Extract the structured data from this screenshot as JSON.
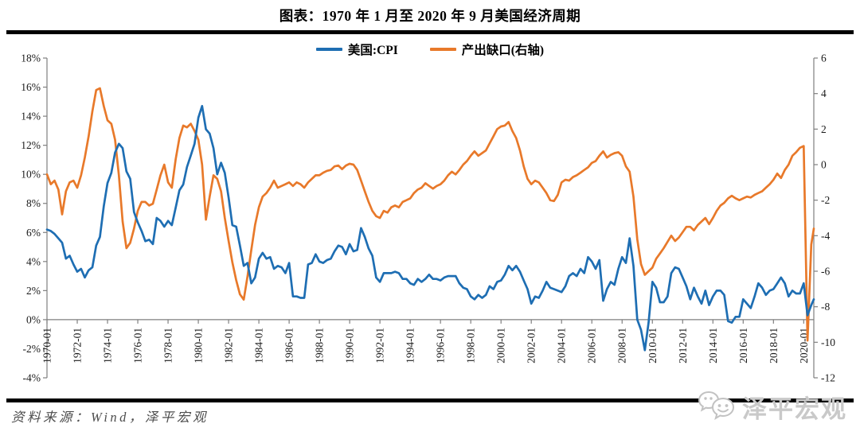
{
  "header": {
    "title": "图表：1970 年 1 月至 2020 年 9 月美国经济周期"
  },
  "legend": {
    "items": [
      {
        "label": "美国:CPI",
        "color": "#1e6eb3"
      },
      {
        "label": "产出缺口(右轴)",
        "color": "#e8792a"
      }
    ]
  },
  "footer": {
    "source_note": "资料来源：Wind，泽平宏观"
  },
  "watermark": {
    "text": "泽平宏观"
  },
  "chart_data": {
    "type": "line",
    "title": "图表：1970 年 1 月至 2020 年 9 月美国经济周期",
    "legend_position": "top",
    "grid": false,
    "x_start": 1970.0,
    "x_step": 0.25,
    "x_end": 2020.667,
    "x_tick_step_years": 2,
    "x_tick_labels": [
      "1970-01",
      "1972-01",
      "1974-01",
      "1976-01",
      "1978-01",
      "1980-01",
      "1982-01",
      "1984-01",
      "1986-01",
      "1988-01",
      "1990-01",
      "1992-01",
      "1994-01",
      "1996-01",
      "1998-01",
      "2000-01",
      "2002-01",
      "2004-01",
      "2006-01",
      "2008-01",
      "2010-01",
      "2012-01",
      "2014-01",
      "2016-01",
      "2018-01",
      "2020-01"
    ],
    "left_axis": {
      "max": 18,
      "min": -4,
      "tick_labels": [
        "18%",
        "16%",
        "14%",
        "12%",
        "10%",
        "8%",
        "6%",
        "4%",
        "2%",
        "0%",
        "-2%",
        "-4%"
      ]
    },
    "right_axis": {
      "max": 6,
      "min": -12,
      "tick_labels": [
        "6",
        "4",
        "2",
        "0",
        "-2",
        "-4",
        "-6",
        "-8",
        "-10",
        "-12"
      ]
    },
    "axis_color": "#7f7f7f",
    "tick_label_color": "#1a1a1a",
    "series": [
      {
        "name": "美国:CPI",
        "axis": "left",
        "color": "#1e6eb3",
        "values": [
          6.2,
          6.1,
          5.9,
          5.6,
          5.3,
          4.2,
          4.4,
          3.8,
          3.3,
          3.5,
          2.9,
          3.4,
          3.6,
          5.1,
          5.7,
          7.8,
          9.4,
          10.1,
          11.5,
          12.1,
          11.8,
          10.2,
          9.7,
          7.4,
          6.7,
          6.1,
          5.4,
          5.5,
          5.2,
          7.0,
          6.8,
          6.4,
          6.8,
          6.5,
          7.7,
          8.9,
          9.3,
          10.5,
          11.3,
          12.1,
          13.9,
          14.7,
          13.1,
          12.8,
          11.8,
          10.0,
          10.8,
          10.1,
          8.4,
          6.5,
          6.4,
          5.1,
          3.7,
          3.9,
          2.5,
          2.9,
          4.2,
          4.6,
          4.2,
          4.3,
          3.5,
          3.7,
          3.6,
          3.2,
          3.9,
          1.6,
          1.6,
          1.5,
          1.5,
          3.8,
          3.9,
          4.5,
          4.0,
          3.9,
          4.1,
          4.2,
          4.7,
          5.1,
          5.0,
          4.5,
          5.2,
          4.7,
          4.8,
          6.3,
          5.7,
          4.9,
          4.4,
          2.9,
          2.6,
          3.2,
          3.2,
          3.2,
          3.3,
          3.2,
          2.8,
          2.8,
          2.5,
          2.4,
          2.8,
          2.6,
          2.8,
          3.1,
          2.8,
          2.8,
          2.7,
          2.9,
          3.0,
          3.0,
          3.0,
          2.5,
          2.2,
          2.1,
          1.6,
          1.4,
          1.7,
          1.5,
          1.7,
          2.3,
          2.1,
          2.6,
          2.7,
          3.1,
          3.7,
          3.4,
          3.7,
          3.3,
          2.7,
          2.1,
          1.1,
          1.6,
          1.5,
          2.0,
          2.6,
          2.2,
          2.1,
          2.0,
          1.9,
          2.3,
          3.0,
          3.2,
          3.0,
          3.5,
          3.2,
          4.3,
          4.0,
          3.5,
          4.1,
          1.3,
          2.1,
          2.6,
          2.4,
          3.5,
          4.3,
          3.9,
          5.6,
          3.7,
          0.0,
          -0.7,
          -2.1,
          -0.2,
          2.6,
          2.2,
          1.2,
          1.2,
          1.6,
          3.2,
          3.6,
          3.5,
          2.9,
          2.3,
          1.4,
          2.2,
          1.6,
          1.1,
          2.0,
          1.0,
          1.6,
          2.0,
          2.0,
          1.7,
          -0.1,
          -0.2,
          0.2,
          0.2,
          1.4,
          1.1,
          0.8,
          1.6,
          2.5,
          2.2,
          1.7,
          2.0,
          2.1,
          2.5,
          2.9,
          2.5,
          1.6,
          2.0,
          1.8,
          1.8,
          2.5,
          0.3,
          1.0,
          1.4
        ]
      },
      {
        "name": "产出缺口(右轴)",
        "axis": "right",
        "color": "#e8792a",
        "values": [
          -0.55,
          -1.1,
          -0.9,
          -1.4,
          -2.8,
          -1.5,
          -1.0,
          -0.9,
          -1.3,
          -0.6,
          0.4,
          1.6,
          3.0,
          4.2,
          4.3,
          3.3,
          2.5,
          2.3,
          1.4,
          -0.6,
          -3.2,
          -4.7,
          -4.4,
          -3.6,
          -2.6,
          -2.1,
          -2.1,
          -2.3,
          -2.2,
          -1.4,
          -0.6,
          0.0,
          -1.0,
          -1.3,
          0.3,
          1.5,
          2.2,
          2.1,
          2.3,
          1.9,
          1.4,
          0.0,
          -3.1,
          -1.8,
          -0.6,
          -0.8,
          -1.5,
          -3.0,
          -4.3,
          -5.5,
          -6.5,
          -7.3,
          -7.6,
          -6.3,
          -4.8,
          -3.4,
          -2.4,
          -1.8,
          -1.6,
          -1.3,
          -0.9,
          -1.3,
          -1.2,
          -1.1,
          -1.0,
          -1.2,
          -1.0,
          -1.1,
          -1.3,
          -1.0,
          -0.8,
          -0.6,
          -0.6,
          -0.45,
          -0.35,
          -0.3,
          -0.1,
          -0.05,
          -0.25,
          -0.05,
          0.05,
          0.0,
          -0.3,
          -0.9,
          -1.5,
          -2.1,
          -2.6,
          -2.9,
          -3.0,
          -2.6,
          -2.7,
          -2.4,
          -2.3,
          -2.4,
          -2.1,
          -2.0,
          -1.9,
          -1.6,
          -1.4,
          -1.3,
          -1.05,
          -1.2,
          -1.35,
          -1.2,
          -1.1,
          -0.9,
          -0.6,
          -0.4,
          -0.55,
          -0.3,
          0.0,
          0.2,
          0.5,
          0.75,
          0.5,
          0.65,
          0.8,
          1.2,
          1.6,
          2.0,
          2.15,
          2.2,
          2.4,
          1.9,
          1.5,
          0.8,
          -0.1,
          -0.8,
          -1.1,
          -0.9,
          -1.0,
          -1.3,
          -1.6,
          -2.0,
          -2.05,
          -1.7,
          -1.0,
          -0.85,
          -0.9,
          -0.7,
          -0.6,
          -0.45,
          -0.3,
          -0.15,
          0.1,
          0.2,
          0.5,
          0.75,
          0.4,
          0.55,
          0.65,
          0.7,
          0.5,
          -0.1,
          -0.4,
          -1.8,
          -4.2,
          -5.6,
          -6.2,
          -6.0,
          -5.8,
          -5.3,
          -5.0,
          -4.7,
          -4.35,
          -4.0,
          -4.3,
          -4.1,
          -3.8,
          -3.5,
          -3.5,
          -3.7,
          -3.4,
          -3.2,
          -3.0,
          -3.35,
          -3.0,
          -2.6,
          -2.3,
          -2.15,
          -1.9,
          -1.75,
          -1.9,
          -2.0,
          -1.9,
          -1.8,
          -1.85,
          -1.7,
          -1.6,
          -1.5,
          -1.3,
          -1.1,
          -0.85,
          -0.5,
          -0.75,
          -0.3,
          0.0,
          0.5,
          0.7,
          0.95,
          1.05,
          -9.9,
          -4.5,
          -3.6
        ]
      }
    ]
  }
}
